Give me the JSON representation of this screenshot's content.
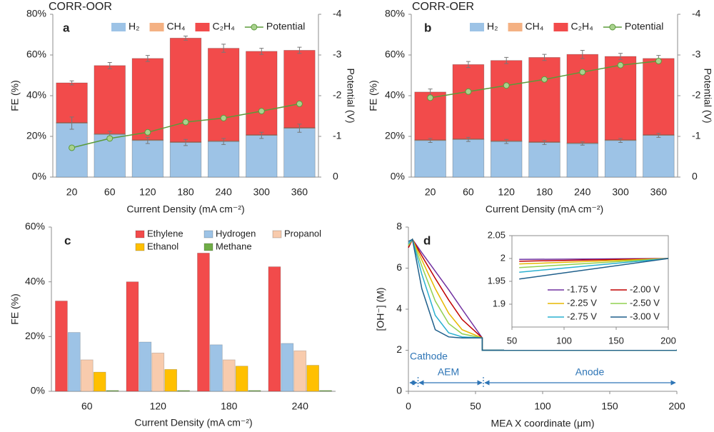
{
  "chart_data": [
    {
      "type": "bar",
      "stacked": true,
      "title": "CORR-OOR",
      "label": "a",
      "x_label": "Current Density (mA cm⁻²)",
      "y_label": "FE (%)",
      "y2_label": "Potential (V)",
      "categories": [
        "20",
        "60",
        "120",
        "180",
        "240",
        "300",
        "360"
      ],
      "series": [
        {
          "name": "H₂",
          "color": "#9dc3e6",
          "values": [
            26.5,
            21,
            18,
            17,
            17.5,
            20.5,
            24
          ],
          "errors": [
            3,
            1.5,
            1.5,
            1.5,
            1.5,
            1.5,
            2
          ]
        },
        {
          "name": "CH₄",
          "color": "#f4b183",
          "values": [
            0.3,
            0.3,
            0.3,
            0.3,
            0.3,
            0.3,
            0.3
          ]
        },
        {
          "name": "C₂H₄",
          "color": "#f24b4b",
          "values": [
            19.5,
            33.5,
            40,
            51,
            45.5,
            41,
            38
          ],
          "errors": [
            1,
            1.5,
            1.5,
            1,
            2,
            1.5,
            1.5
          ]
        },
        {
          "name": "Potential",
          "type": "line",
          "axis": "y2",
          "color": "#5b9b3a",
          "values": [
            -0.72,
            -0.95,
            -1.1,
            -1.35,
            -1.45,
            -1.62,
            -1.8
          ]
        }
      ],
      "ylim": [
        0,
        80
      ],
      "yticks": [
        {
          "value": 0,
          "label": "0%"
        },
        {
          "value": 20,
          "label": "20%"
        },
        {
          "value": 40,
          "label": "40%"
        },
        {
          "value": 60,
          "label": "60%"
        },
        {
          "value": 80,
          "label": "80%"
        }
      ],
      "y2lim": [
        0,
        -4
      ],
      "y2ticks": [
        0,
        -1,
        -2,
        -3,
        -4
      ]
    },
    {
      "type": "bar",
      "stacked": true,
      "title": "CORR-OER",
      "label": "b",
      "x_label": "Current Density (mA cm⁻²)",
      "y_label": "FE (%)",
      "y2_label": "Potential (V)",
      "categories": [
        "20",
        "60",
        "120",
        "180",
        "240",
        "300",
        "360"
      ],
      "series": [
        {
          "name": "H₂",
          "color": "#9dc3e6",
          "values": [
            18,
            18.5,
            17.5,
            17,
            16.5,
            18,
            20.5
          ],
          "errors": [
            1,
            1,
            1,
            1,
            0.8,
            1,
            1
          ]
        },
        {
          "name": "CH₄",
          "color": "#f4b183",
          "values": [
            0.3,
            0.3,
            0.3,
            0.3,
            0.3,
            0.3,
            0.3
          ]
        },
        {
          "name": "C₂H₄",
          "color": "#f24b4b",
          "values": [
            23.5,
            36.5,
            39.5,
            41.5,
            43.5,
            41,
            37.5
          ],
          "errors": [
            1.5,
            1.5,
            1.5,
            1.5,
            2,
            1.5,
            1.5
          ]
        },
        {
          "name": "Potential",
          "type": "line",
          "axis": "y2",
          "color": "#5b9b3a",
          "values": [
            -1.95,
            -2.1,
            -2.25,
            -2.4,
            -2.58,
            -2.75,
            -2.85
          ]
        }
      ],
      "ylim": [
        0,
        80
      ],
      "yticks": [
        {
          "value": 0,
          "label": "0%"
        },
        {
          "value": 20,
          "label": "20%"
        },
        {
          "value": 40,
          "label": "40%"
        },
        {
          "value": 60,
          "label": "60%"
        },
        {
          "value": 80,
          "label": "80%"
        }
      ],
      "y2lim": [
        0,
        -4
      ],
      "y2ticks": [
        0,
        -1,
        -2,
        -3,
        -4
      ]
    },
    {
      "type": "bar",
      "stacked": false,
      "label": "c",
      "x_label": "Current Density (mA cm⁻²)",
      "y_label": "FE (%)",
      "categories": [
        "60",
        "120",
        "180",
        "240"
      ],
      "series": [
        {
          "name": "Ethylene",
          "color": "#f24b4b",
          "values": [
            33,
            40,
            50.5,
            45.5
          ]
        },
        {
          "name": "Hydrogen",
          "color": "#9dc3e6",
          "values": [
            21.5,
            18,
            17,
            17.5
          ]
        },
        {
          "name": "Propanol",
          "color": "#f8cbad",
          "values": [
            11.5,
            14,
            11.5,
            14.8
          ]
        },
        {
          "name": "Ethanol",
          "color": "#ffc000",
          "values": [
            7,
            8,
            9.2,
            9.5
          ]
        },
        {
          "name": "Methane",
          "color": "#70ad47",
          "values": [
            0.3,
            0.3,
            0.3,
            0.3
          ]
        }
      ],
      "ylim": [
        0,
        60
      ],
      "yticks": [
        {
          "value": 0,
          "label": "0%"
        },
        {
          "value": 20,
          "label": "20%"
        },
        {
          "value": 40,
          "label": "40%"
        },
        {
          "value": 60,
          "label": "60%"
        }
      ]
    },
    {
      "type": "line",
      "label": "d",
      "x_label": "MEA X coordinate (μm)",
      "y_label": "[OH⁻] (M)",
      "annotations": [
        "Cathode",
        "AEM",
        "Anode"
      ],
      "x": [
        0,
        3,
        10,
        20,
        30,
        40,
        55,
        55,
        100,
        150,
        200
      ],
      "series": [
        {
          "color": "#7030a0",
          "values": [
            7.0,
            7.4,
            6.75,
            5.85,
            4.95,
            4.0,
            2.6,
            2.0,
            2.0,
            2.0,
            2.0
          ]
        },
        {
          "color": "#c00000",
          "values": [
            7.0,
            7.4,
            6.6,
            5.5,
            4.45,
            3.5,
            2.6,
            2.0,
            2.0,
            2.0,
            2.0
          ]
        },
        {
          "color": "#e6b800",
          "values": [
            7.1,
            7.4,
            6.4,
            5.0,
            3.8,
            3.0,
            2.6,
            2.0,
            2.0,
            2.0,
            2.0
          ]
        },
        {
          "color": "#92d050",
          "values": [
            7.1,
            7.4,
            6.1,
            4.4,
            3.3,
            2.8,
            2.6,
            2.0,
            2.0,
            2.0,
            2.0
          ]
        },
        {
          "color": "#2ab0d0",
          "values": [
            7.2,
            7.4,
            5.7,
            3.7,
            2.85,
            2.65,
            2.6,
            2.0,
            2.0,
            2.0,
            2.0
          ]
        },
        {
          "color": "#1f5f8b",
          "values": [
            7.3,
            7.4,
            5.0,
            3.0,
            2.65,
            2.6,
            2.6,
            2.0,
            2.0,
            2.0,
            2.0
          ]
        }
      ],
      "xlim": [
        0,
        200
      ],
      "xticks": [
        0,
        50,
        100,
        150,
        200
      ],
      "ylim": [
        0,
        8
      ],
      "yticks": [
        0,
        2,
        4,
        6,
        8
      ]
    },
    {
      "type": "line",
      "inset": true,
      "x": [
        57,
        200
      ],
      "series": [
        {
          "name": "-1.75 V",
          "color": "#7030a0",
          "values": [
            1.998,
            2.0
          ]
        },
        {
          "name": "-2.00 V",
          "color": "#c00000",
          "values": [
            1.994,
            2.0
          ]
        },
        {
          "name": "-2.25 V",
          "color": "#e6b800",
          "values": [
            1.988,
            2.0
          ]
        },
        {
          "name": "-2.50 V",
          "color": "#92d050",
          "values": [
            1.98,
            2.0
          ]
        },
        {
          "name": "-2.75 V",
          "color": "#2ab0d0",
          "values": [
            1.97,
            2.0
          ]
        },
        {
          "name": "-3.00 V",
          "color": "#1f5f8b",
          "values": [
            1.955,
            2.0
          ]
        }
      ],
      "xlim": [
        50,
        200
      ],
      "xticks": [
        50,
        100,
        150,
        200
      ],
      "ylim": [
        1.85,
        2.05
      ],
      "yticks": [
        1.9,
        1.95,
        2,
        2.05
      ]
    }
  ]
}
